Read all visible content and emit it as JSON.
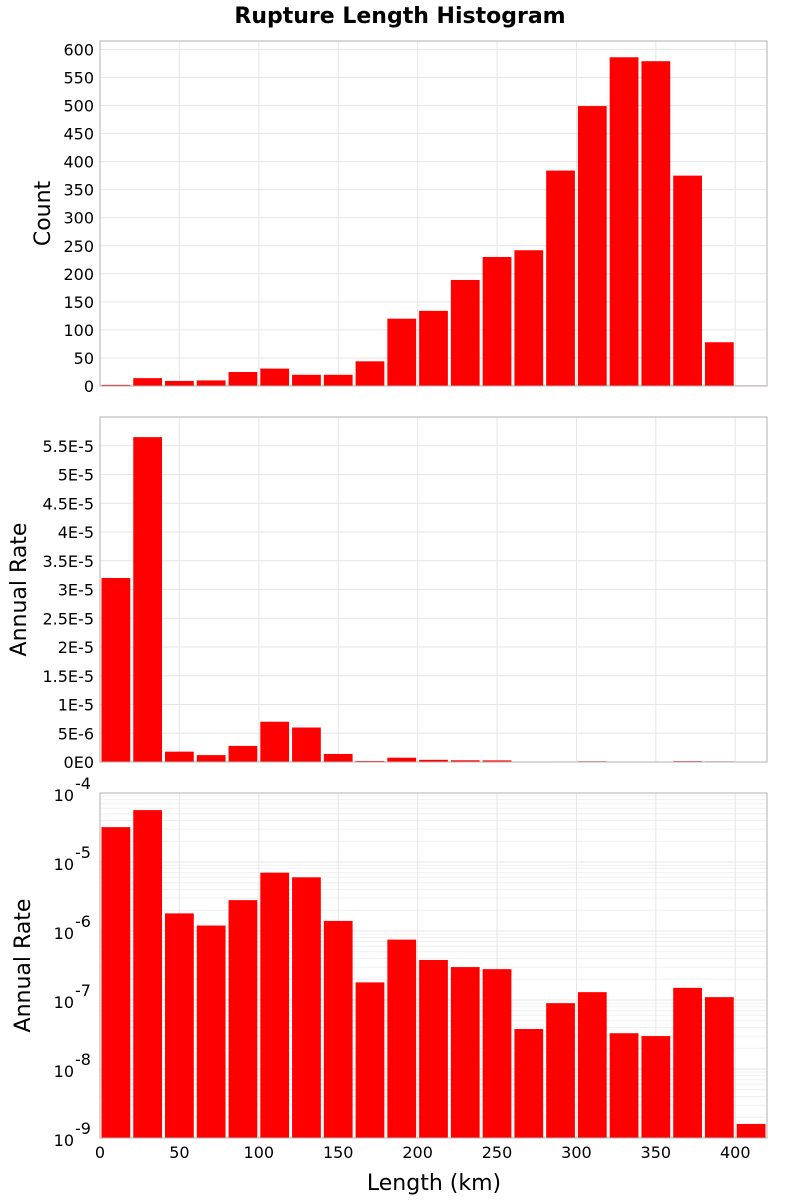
{
  "chart_data": {
    "title": "Rupture Length Histogram",
    "xlabel": "Length (km)",
    "x_ticks": [
      "0",
      "50",
      "100",
      "150",
      "200",
      "250",
      "300",
      "350",
      "400"
    ],
    "x_range": [
      0,
      420
    ],
    "bin_width": 20,
    "bin_centers": [
      10,
      30,
      50,
      70,
      90,
      110,
      130,
      150,
      170,
      190,
      210,
      230,
      250,
      270,
      290,
      310,
      330,
      350,
      370,
      390,
      410
    ],
    "bar_color": "#ff0000",
    "panels": [
      {
        "type": "bar",
        "ylabel": "Count",
        "ylim": [
          0,
          615
        ],
        "y_ticks": [
          {
            "v": 0,
            "label": "0"
          },
          {
            "v": 50,
            "label": "50"
          },
          {
            "v": 100,
            "label": "100"
          },
          {
            "v": 150,
            "label": "150"
          },
          {
            "v": 200,
            "label": "200"
          },
          {
            "v": 250,
            "label": "250"
          },
          {
            "v": 300,
            "label": "300"
          },
          {
            "v": 350,
            "label": "350"
          },
          {
            "v": 400,
            "label": "400"
          },
          {
            "v": 450,
            "label": "450"
          },
          {
            "v": 500,
            "label": "500"
          },
          {
            "v": 550,
            "label": "550"
          },
          {
            "v": 600,
            "label": "600"
          }
        ],
        "values": [
          2,
          14,
          9,
          10,
          25,
          31,
          20,
          20,
          44,
          120,
          134,
          189,
          230,
          242,
          384,
          499,
          586,
          579,
          375,
          78,
          1
        ]
      },
      {
        "type": "bar",
        "ylabel": "Annual Rate",
        "ylim": [
          0,
          6e-05
        ],
        "y_ticks": [
          {
            "v": 0,
            "label": "0E0"
          },
          {
            "v": 5e-06,
            "label": "5E-6"
          },
          {
            "v": 1e-05,
            "label": "1E-5"
          },
          {
            "v": 1.5e-05,
            "label": "1.5E-5"
          },
          {
            "v": 2e-05,
            "label": "2E-5"
          },
          {
            "v": 2.5e-05,
            "label": "2.5E-5"
          },
          {
            "v": 3e-05,
            "label": "3E-5"
          },
          {
            "v": 3.5e-05,
            "label": "3.5E-5"
          },
          {
            "v": 4e-05,
            "label": "4E-5"
          },
          {
            "v": 4.5e-05,
            "label": "4.5E-5"
          },
          {
            "v": 5e-05,
            "label": "5E-5"
          },
          {
            "v": 5.5e-05,
            "label": "5.5E-5"
          }
        ],
        "values": [
          3.2e-05,
          5.65e-05,
          1.8e-06,
          1.2e-06,
          2.8e-06,
          7e-06,
          6e-06,
          1.4e-06,
          1.8e-07,
          7.5e-07,
          3.8e-07,
          3e-07,
          2.8e-07,
          3.8e-08,
          9e-08,
          1.3e-07,
          3.3e-08,
          3e-08,
          1.5e-07,
          1.1e-07,
          1.6e-09
        ]
      },
      {
        "type": "bar",
        "scale": "log",
        "ylabel": "Annual Rate",
        "ylim": [
          1e-09,
          0.0001
        ],
        "y_ticks": [
          {
            "v": 1e-09,
            "base": "10",
            "exp": "-9"
          },
          {
            "v": 1e-08,
            "base": "10",
            "exp": "-8"
          },
          {
            "v": 1e-07,
            "base": "10",
            "exp": "-7"
          },
          {
            "v": 1e-06,
            "base": "10",
            "exp": "-6"
          },
          {
            "v": 1e-05,
            "base": "10",
            "exp": "-5"
          },
          {
            "v": 0.0001,
            "base": "10",
            "exp": "-4"
          }
        ],
        "values": [
          3.2e-05,
          5.65e-05,
          1.8e-06,
          1.2e-06,
          2.8e-06,
          7e-06,
          6e-06,
          1.4e-06,
          1.8e-07,
          7.5e-07,
          3.8e-07,
          3e-07,
          2.8e-07,
          3.8e-08,
          9e-08,
          1.3e-07,
          3.3e-08,
          3e-08,
          1.5e-07,
          1.1e-07,
          1.6e-09
        ]
      }
    ]
  }
}
